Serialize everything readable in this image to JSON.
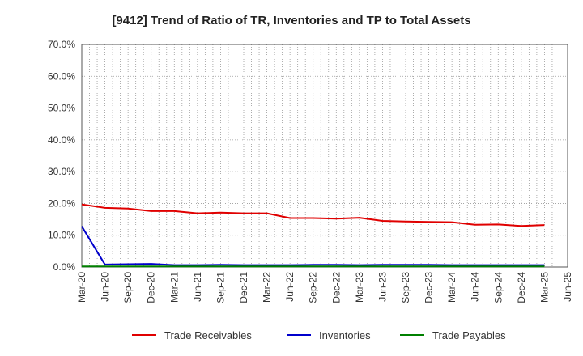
{
  "chart_data": {
    "type": "line",
    "title": "[9412]  Trend of Ratio of TR, Inventories and TP to Total Assets",
    "xlabel": "",
    "ylabel": "",
    "ylim": [
      0,
      70
    ],
    "y_ticks": [
      "0.0%",
      "10.0%",
      "20.0%",
      "30.0%",
      "40.0%",
      "50.0%",
      "60.0%",
      "70.0%"
    ],
    "x_ticks": [
      "Mar-20",
      "Jun-20",
      "Sep-20",
      "Dec-20",
      "Mar-21",
      "Jun-21",
      "Sep-21",
      "Dec-21",
      "Mar-22",
      "Jun-22",
      "Sep-22",
      "Dec-22",
      "Mar-23",
      "Jun-23",
      "Sep-23",
      "Dec-23",
      "Mar-24",
      "Jun-24",
      "Sep-24",
      "Dec-24",
      "Mar-25",
      "Jun-25"
    ],
    "categories": [
      "Mar-20",
      "Jun-20",
      "Sep-20",
      "Dec-20",
      "Mar-21",
      "Jun-21",
      "Sep-21",
      "Dec-21",
      "Mar-22",
      "Jun-22",
      "Sep-22",
      "Dec-22",
      "Mar-23",
      "Jun-23",
      "Sep-23",
      "Dec-23",
      "Mar-24",
      "Jun-24",
      "Sep-24",
      "Dec-24",
      "Mar-25"
    ],
    "grid": true,
    "legend_position": "bottom",
    "series": [
      {
        "name": "Trade Receivables",
        "color": "#e00000",
        "values": [
          19.7,
          18.6,
          18.4,
          17.6,
          17.6,
          16.9,
          17.1,
          16.9,
          16.9,
          15.4,
          15.4,
          15.2,
          15.5,
          14.5,
          14.3,
          14.2,
          14.1,
          13.3,
          13.4,
          12.9,
          13.2
        ]
      },
      {
        "name": "Inventories",
        "color": "#0000cc",
        "values": [
          12.8,
          0.8,
          0.9,
          1.0,
          0.6,
          0.6,
          0.7,
          0.6,
          0.6,
          0.6,
          0.7,
          0.7,
          0.6,
          0.7,
          0.7,
          0.7,
          0.6,
          0.6,
          0.6,
          0.6,
          0.6
        ]
      },
      {
        "name": "Trade Payables",
        "color": "#008000",
        "values": [
          0.2,
          0.2,
          0.2,
          0.2,
          0.2,
          0.2,
          0.2,
          0.2,
          0.2,
          0.2,
          0.2,
          0.2,
          0.2,
          0.2,
          0.2,
          0.2,
          0.2,
          0.2,
          0.2,
          0.2,
          0.2
        ]
      }
    ]
  }
}
